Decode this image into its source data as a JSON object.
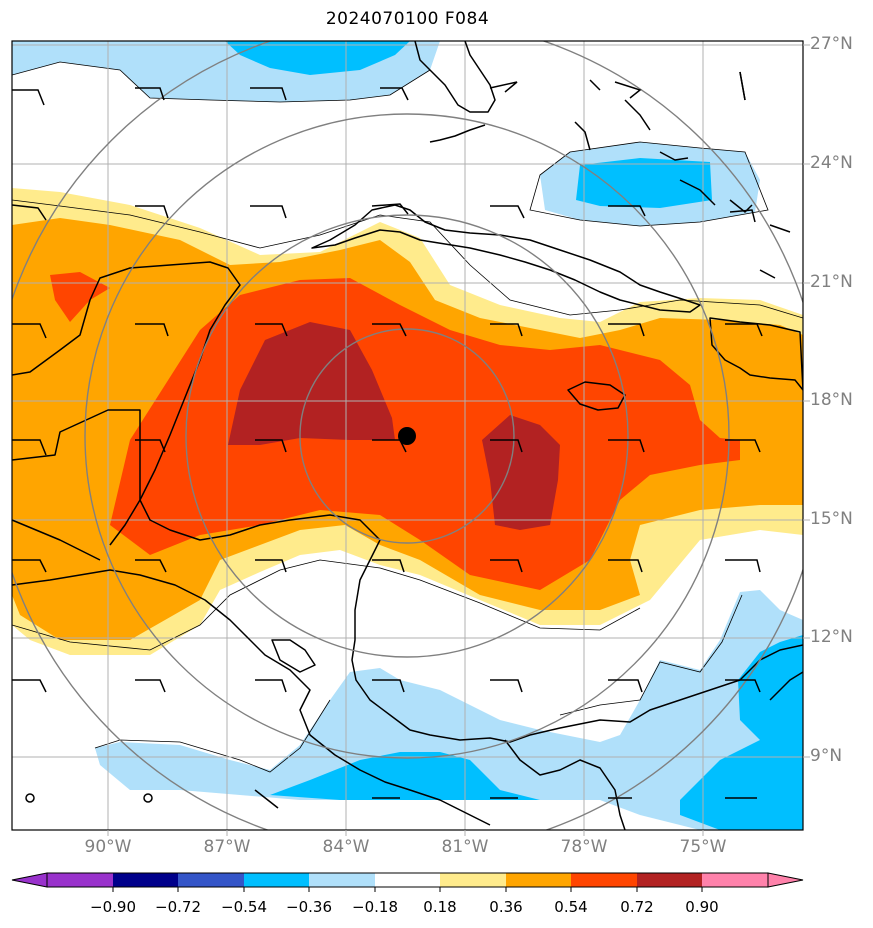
{
  "title": "2024070100 F084",
  "lat_labels": [
    "27°N",
    "24°N",
    "21°N",
    "18°N",
    "15°N",
    "12°N",
    "9°N"
  ],
  "lon_labels": [
    "90°W",
    "87°W",
    "84°W",
    "81°W",
    "78°W",
    "75°W"
  ],
  "colorbar": {
    "ticks": [
      "−0.90",
      "−0.72",
      "−0.54",
      "−0.36",
      "−0.18",
      "0.18",
      "0.36",
      "0.54",
      "0.72",
      "0.90"
    ],
    "colors": [
      "#9932cc",
      "#00008b",
      "#3455c8",
      "#00bfff",
      "#b0e0fa",
      "#ffffff",
      "#ffeb8c",
      "#ffa500",
      "#ff4500",
      "#b22222",
      "#ff82ab"
    ]
  },
  "storm_center": {
    "lon": -82.5,
    "lat": 17.1
  },
  "map_extent": {
    "lon": [
      -92.5,
      -72.5
    ],
    "lat": [
      7.8,
      27.1
    ]
  }
}
